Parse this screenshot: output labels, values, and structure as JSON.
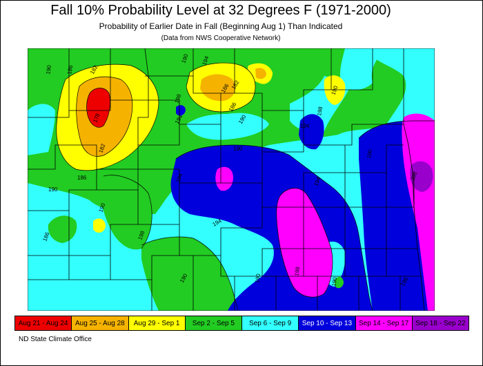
{
  "title": "Fall 10% Probability Level at 32 Degrees F (1971-2000)",
  "subtitle": "Probability of Earlier Date in Fall (Beginning Aug 1) Than Indicated",
  "note": "(Data from NWS Cooperative Network)",
  "footer": "ND State Climate Office",
  "legend": [
    {
      "label": "Aug 21 - Aug 24",
      "color": "#ee0000",
      "text_color": "#000000"
    },
    {
      "label": "Aug 25 - Aug 28",
      "color": "#f5b300",
      "text_color": "#000000"
    },
    {
      "label": "Aug 29 - Sep 1",
      "color": "#ffff00",
      "text_color": "#000000"
    },
    {
      "label": "Sep 2 - Sep 5",
      "color": "#22cc22",
      "text_color": "#000000"
    },
    {
      "label": "Sep 6 - Sep 9",
      "color": "#33ffff",
      "text_color": "#000000"
    },
    {
      "label": "Sep 10 - Sep 13",
      "color": "#0000dd",
      "text_color": "#ffffff"
    },
    {
      "label": "Sep 14 - Sep 17",
      "color": "#ff00ff",
      "text_color": "#000000"
    },
    {
      "label": "Sep 18 - Sep 22",
      "color": "#9900cc",
      "text_color": "#000000"
    }
  ],
  "contour_labels": [
    "190",
    "186",
    "182",
    "178",
    "182",
    "186",
    "190",
    "194",
    "198",
    "194",
    "190",
    "186",
    "182",
    "186",
    "190",
    "190",
    "194",
    "198",
    "190",
    "186",
    "190",
    "194",
    "198",
    "194",
    "190",
    "194",
    "198",
    "202",
    "190",
    "190",
    "190",
    "198"
  ]
}
